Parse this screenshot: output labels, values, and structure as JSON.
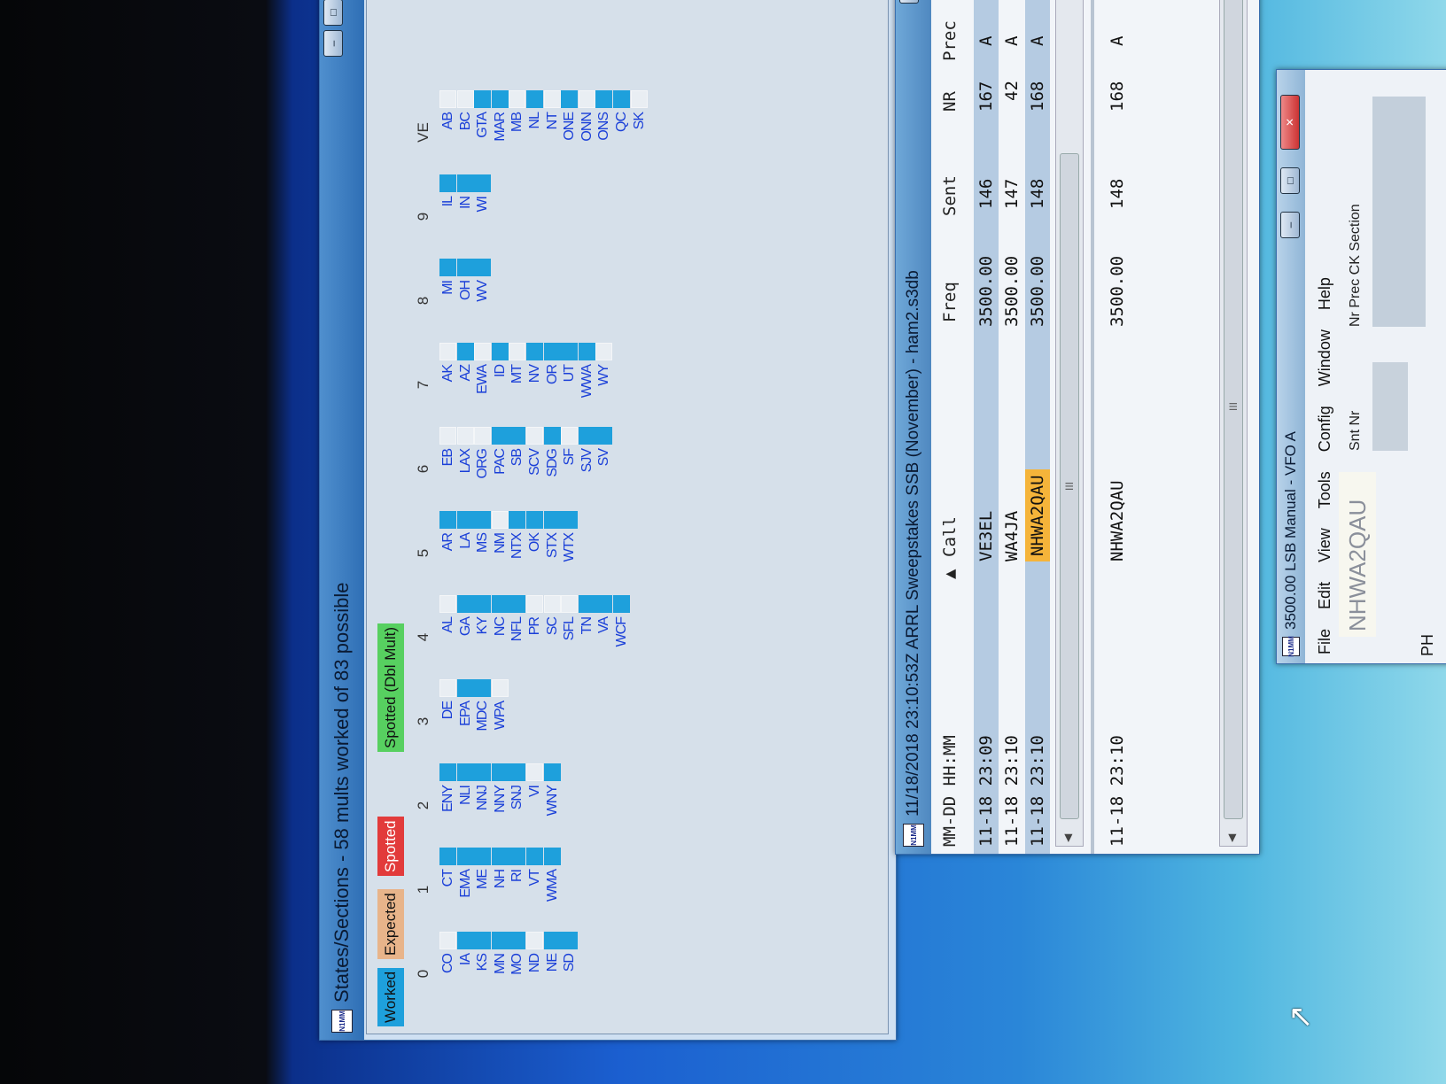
{
  "states_window": {
    "icon": "N1MM",
    "title": "States/Sections - 58 mults worked of 83 possible",
    "legend": [
      {
        "label": "Worked",
        "color": "#1ea0dc"
      },
      {
        "label": "Expected",
        "color": "#e8b48a"
      },
      {
        "label": "Spotted",
        "color": "#e23b3b"
      },
      {
        "label": "Spotted (Dbl Mult)",
        "color": "#57d060"
      }
    ],
    "worked_color": "#1ea0dc",
    "columns": [
      {
        "header": "0",
        "items": [
          [
            "CO",
            0
          ],
          [
            "IA",
            1
          ],
          [
            "KS",
            1
          ],
          [
            "MN",
            1
          ],
          [
            "MO",
            1
          ],
          [
            "ND",
            0
          ],
          [
            "NE",
            1
          ],
          [
            "SD",
            1
          ]
        ]
      },
      {
        "header": "1",
        "items": [
          [
            "CT",
            1
          ],
          [
            "EMA",
            1
          ],
          [
            "ME",
            1
          ],
          [
            "NH",
            1
          ],
          [
            "RI",
            1
          ],
          [
            "VT",
            1
          ],
          [
            "WMA",
            1
          ]
        ]
      },
      {
        "header": "2",
        "items": [
          [
            "ENY",
            1
          ],
          [
            "NLI",
            1
          ],
          [
            "NNJ",
            1
          ],
          [
            "NNY",
            1
          ],
          [
            "SNJ",
            1
          ],
          [
            "VI",
            0
          ],
          [
            "WNY",
            1
          ]
        ]
      },
      {
        "header": "3",
        "items": [
          [
            "DE",
            0
          ],
          [
            "EPA",
            1
          ],
          [
            "MDC",
            1
          ],
          [
            "WPA",
            0
          ]
        ]
      },
      {
        "header": "4",
        "items": [
          [
            "AL",
            0
          ],
          [
            "GA",
            1
          ],
          [
            "KY",
            1
          ],
          [
            "NC",
            1
          ],
          [
            "NFL",
            1
          ],
          [
            "PR",
            0
          ],
          [
            "SC",
            0
          ],
          [
            "SFL",
            0
          ],
          [
            "TN",
            1
          ],
          [
            "VA",
            1
          ],
          [
            "WCF",
            1
          ]
        ]
      },
      {
        "header": "5",
        "items": [
          [
            "AR",
            1
          ],
          [
            "LA",
            1
          ],
          [
            "MS",
            1
          ],
          [
            "NM",
            0
          ],
          [
            "NTX",
            1
          ],
          [
            "OK",
            1
          ],
          [
            "STX",
            1
          ],
          [
            "WTX",
            1
          ]
        ]
      },
      {
        "header": "6",
        "items": [
          [
            "EB",
            0
          ],
          [
            "LAX",
            0
          ],
          [
            "ORG",
            0
          ],
          [
            "PAC",
            1
          ],
          [
            "SB",
            1
          ],
          [
            "SCV",
            0
          ],
          [
            "SDG",
            1
          ],
          [
            "SF",
            0
          ],
          [
            "SJV",
            1
          ],
          [
            "SV",
            1
          ]
        ]
      },
      {
        "header": "7",
        "items": [
          [
            "AK",
            0
          ],
          [
            "AZ",
            1
          ],
          [
            "EWA",
            0
          ],
          [
            "ID",
            1
          ],
          [
            "MT",
            0
          ],
          [
            "NV",
            1
          ],
          [
            "OR",
            1
          ],
          [
            "UT",
            1
          ],
          [
            "WWA",
            1
          ],
          [
            "WY",
            0
          ]
        ]
      },
      {
        "header": "8",
        "items": [
          [
            "MI",
            1
          ],
          [
            "OH",
            1
          ],
          [
            "WV",
            1
          ]
        ]
      },
      {
        "header": "9",
        "items": [
          [
            "IL",
            1
          ],
          [
            "IN",
            1
          ],
          [
            "WI",
            1
          ]
        ]
      },
      {
        "header": "VE",
        "items": [
          [
            "AB",
            0
          ],
          [
            "BC",
            0
          ],
          [
            "GTA",
            1
          ],
          [
            "MAR",
            1
          ],
          [
            "MB",
            0
          ],
          [
            "NL",
            1
          ],
          [
            "NT",
            0
          ],
          [
            "ONE",
            1
          ],
          [
            "ONN",
            0
          ],
          [
            "ONS",
            1
          ],
          [
            "QC",
            1
          ],
          [
            "SK",
            0
          ]
        ]
      }
    ]
  },
  "log_window": {
    "icon": "N1MM",
    "title": "11/18/2018 23:10:53Z ARRL Sweepstakes SSB (November) - ham2.s3db",
    "headers": {
      "datetime": "MM-DD HH:MM",
      "call": "Call",
      "freq": "Freq",
      "sent": "Sent",
      "nr": "NR",
      "prec": "Prec"
    },
    "rows": [
      {
        "datetime": "11-18 23:09",
        "call": "VE3EL",
        "freq": "3500.00",
        "sent": "146",
        "nr": "167",
        "prec": "A",
        "selected": true
      },
      {
        "datetime": "11-18 23:10",
        "call": "WA4JA",
        "freq": "3500.00",
        "sent": "147",
        "nr": "42",
        "prec": "A",
        "selected": false
      },
      {
        "datetime": "11-18 23:10",
        "call": "NHWA2QAU",
        "freq": "3500.00",
        "sent": "148",
        "nr": "168",
        "prec": "A",
        "selected": true,
        "call_highlight": "#f5b43a"
      }
    ],
    "lower_row": {
      "datetime": "11-18 23:10",
      "call": "NHWA2QAU",
      "freq": "3500.00",
      "sent": "148",
      "nr": "168",
      "prec": "A"
    },
    "scroll_grip": "III"
  },
  "vfo_window": {
    "icon": "N1MM",
    "title": "3500.00 LSB Manual - VFO A",
    "menu": [
      "File",
      "Edit",
      "View",
      "Tools",
      "Config",
      "Window",
      "Help"
    ],
    "call_value": "NHWA2QAU",
    "snt_label": "Snt Nr",
    "fields_label": "Nr Prec CK Section",
    "mode": "PH"
  }
}
